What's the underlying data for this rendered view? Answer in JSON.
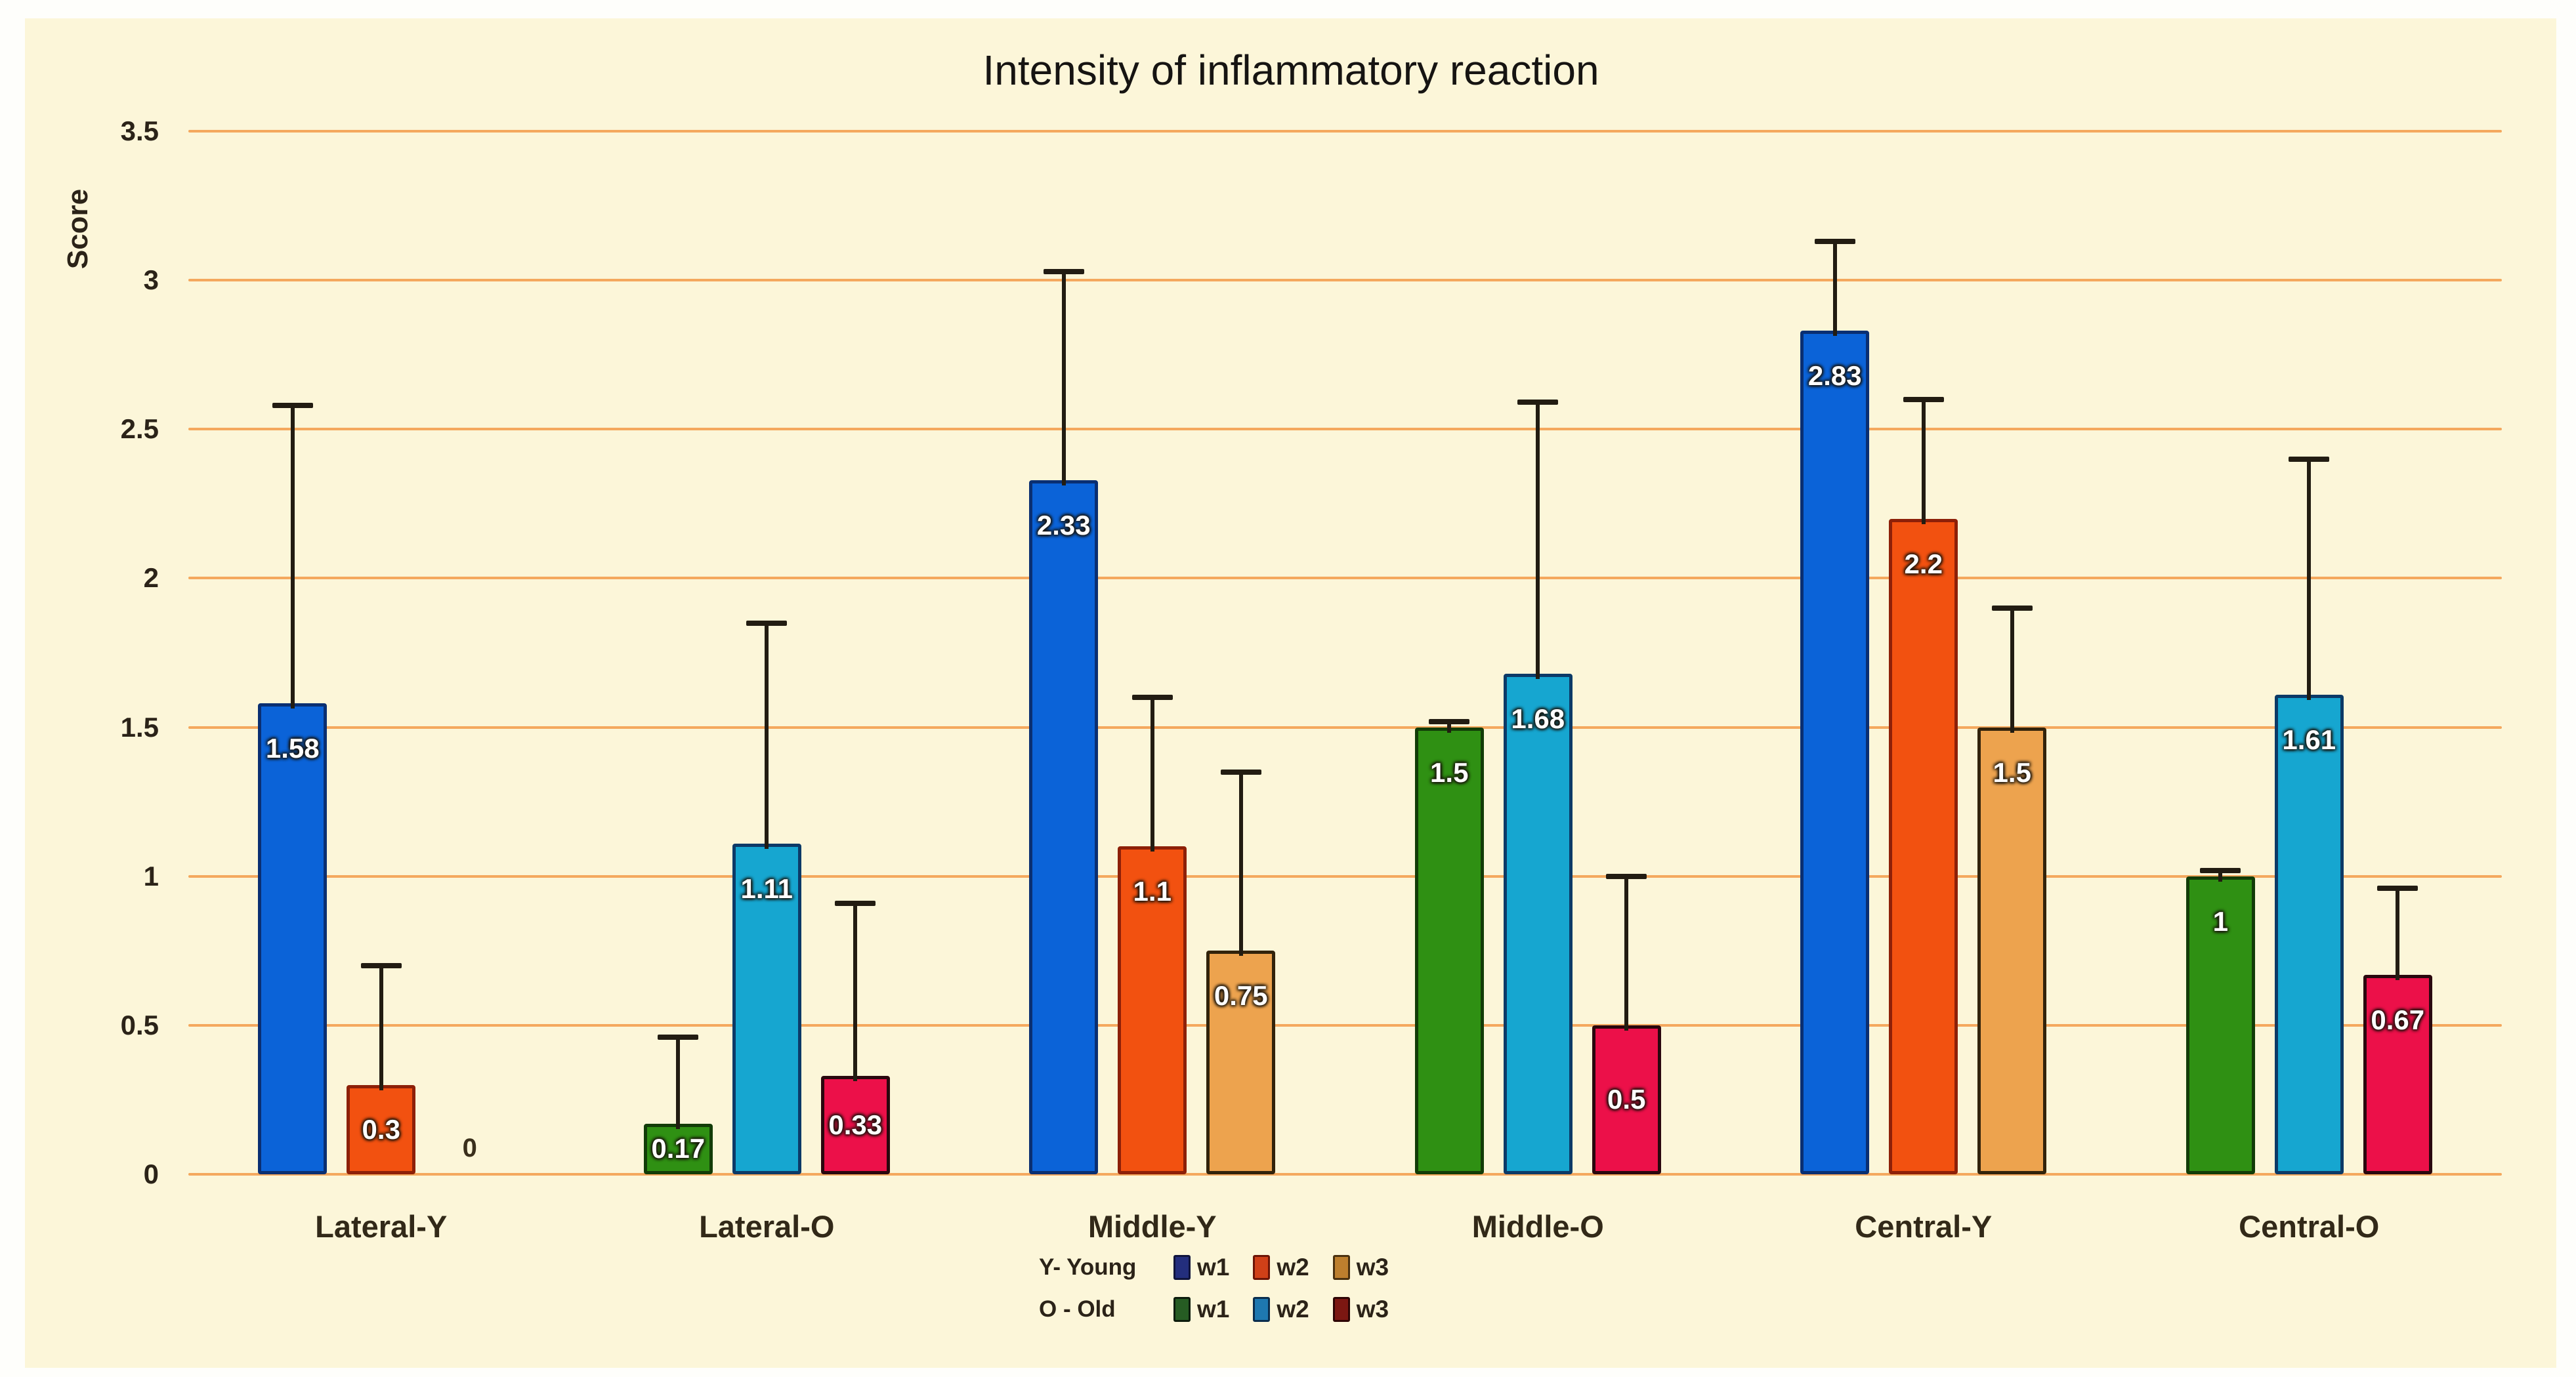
{
  "title": "Intensity of inflammatory reaction",
  "y_axis": {
    "label": "Score",
    "tick_labels": [
      "3.5",
      "3",
      "2.5",
      "2",
      "1.5",
      "1",
      "0.5",
      "0"
    ],
    "min": 0,
    "max": 3.5,
    "step": 0.5
  },
  "legend": {
    "rows": [
      {
        "label": "Y- Young",
        "entries": [
          {
            "name": "w1",
            "fill": "#232e7d",
            "border": "#10143c"
          },
          {
            "name": "w2",
            "fill": "#d04018",
            "border": "#6b1507"
          },
          {
            "name": "w3",
            "fill": "#bd7f2e",
            "border": "#4a3110"
          }
        ]
      },
      {
        "label": "O - Old",
        "entries": [
          {
            "name": "w1",
            "fill": "#265c23",
            "border": "#0d1c0d"
          },
          {
            "name": "w2",
            "fill": "#1e78b0",
            "border": "#0a2d4d"
          },
          {
            "name": "w3",
            "fill": "#7c1712",
            "border": "#2d0505"
          }
        ]
      }
    ]
  },
  "chart_data": {
    "type": "bar",
    "title": "Intensity of inflammatory reaction",
    "ylabel": "Score",
    "ylim": [
      0,
      3.5
    ],
    "gridline_step": 0.5,
    "grid": true,
    "legend_position": "bottom",
    "categories": [
      "Lateral-Y",
      "Lateral-O",
      "Middle-Y",
      "Middle-O",
      "Central-Y",
      "Central-O"
    ],
    "series_names": [
      "w1",
      "w2",
      "w3"
    ],
    "groups": [
      {
        "category": "Lateral-Y",
        "cohort": "Y",
        "bars": [
          {
            "series": "w1",
            "value": 1.58,
            "label": "1.58",
            "err_top": 2.58
          },
          {
            "series": "w2",
            "value": 0.3,
            "label": "0.3",
            "err_top": 0.7
          },
          {
            "series": "w3",
            "value": 0,
            "label": "0",
            "err_top": null
          }
        ]
      },
      {
        "category": "Lateral-O",
        "cohort": "O",
        "bars": [
          {
            "series": "w1",
            "value": 0.17,
            "label": "0.17",
            "err_top": 0.46
          },
          {
            "series": "w2",
            "value": 1.11,
            "label": "1.11",
            "err_top": 1.85
          },
          {
            "series": "w3",
            "value": 0.33,
            "label": "0.33",
            "err_top": 0.91
          }
        ]
      },
      {
        "category": "Middle-Y",
        "cohort": "Y",
        "bars": [
          {
            "series": "w1",
            "value": 2.33,
            "label": "2.33",
            "err_top": 3.03
          },
          {
            "series": "w2",
            "value": 1.1,
            "label": "1.1",
            "err_top": 1.6
          },
          {
            "series": "w3",
            "value": 0.75,
            "label": "0.75",
            "err_top": 1.35
          }
        ]
      },
      {
        "category": "Middle-O",
        "cohort": "O",
        "bars": [
          {
            "series": "w1",
            "value": 1.5,
            "label": "1.5",
            "err_top": 1.52
          },
          {
            "series": "w2",
            "value": 1.68,
            "label": "1.68",
            "err_top": 2.59
          },
          {
            "series": "w3",
            "value": 0.5,
            "label": "0.5",
            "err_top": 1.0
          }
        ]
      },
      {
        "category": "Central-Y",
        "cohort": "Y",
        "bars": [
          {
            "series": "w1",
            "value": 2.83,
            "label": "2.83",
            "err_top": 3.13
          },
          {
            "series": "w2",
            "value": 2.2,
            "label": "2.2",
            "err_top": 2.6
          },
          {
            "series": "w3",
            "value": 1.5,
            "label": "1.5",
            "err_top": 1.9
          }
        ]
      },
      {
        "category": "Central-O",
        "cohort": "O",
        "bars": [
          {
            "series": "w1",
            "value": 1,
            "label": "1",
            "err_top": 1.02
          },
          {
            "series": "w2",
            "value": 1.61,
            "label": "1.61",
            "err_top": 2.4
          },
          {
            "series": "w3",
            "value": 0.67,
            "label": "0.67",
            "err_top": 0.96
          }
        ]
      }
    ],
    "bar_colors": {
      "Y": {
        "w1": {
          "fill": "#0b63d8",
          "border": "#0a2f72"
        },
        "w2": {
          "fill": "#f25110",
          "border": "#8d2008"
        },
        "w3": {
          "fill": "#eda34e",
          "border": "#32230b"
        }
      },
      "O": {
        "w1": {
          "fill": "#2f9013",
          "border": "#123c08"
        },
        "w2": {
          "fill": "#16a6d0",
          "border": "#0c3a67"
        },
        "w3": {
          "fill": "#ec1049",
          "border": "#2a070e"
        }
      }
    },
    "style": {
      "background": "#fcf6d9",
      "outer_background": "#fefefb",
      "gridline_color": "#f4a85e",
      "error_bar_color": "#221c12",
      "value_label_color": "#ffffff",
      "zero_label_color": "#3a2f1c"
    }
  }
}
